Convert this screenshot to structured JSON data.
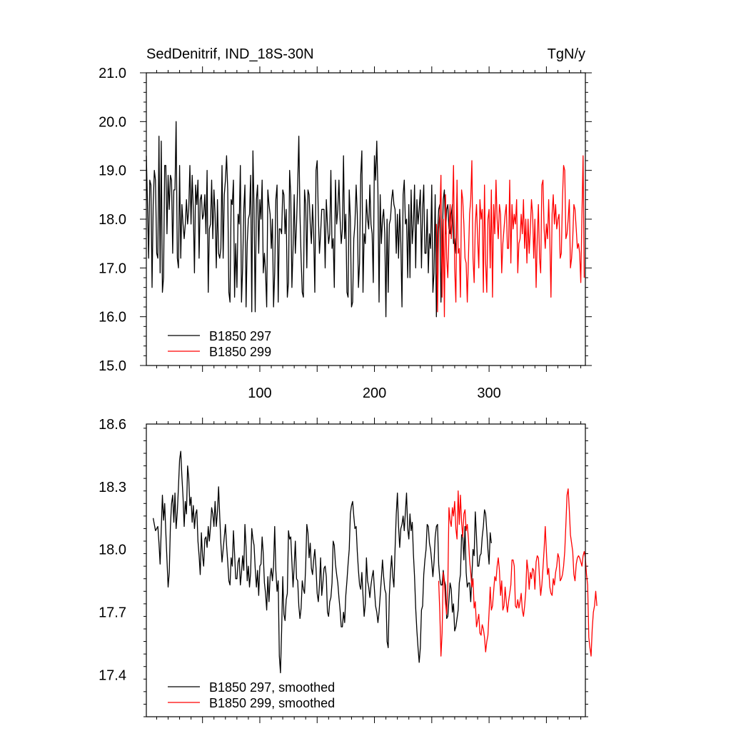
{
  "chart_data": [
    {
      "type": "line",
      "title_left": "SedDenitrif, IND_18S-30N",
      "title_right": "TgN/y",
      "xlim": [
        1,
        384
      ],
      "ylim": [
        15.0,
        21.0
      ],
      "x_ticks": [
        100,
        200,
        300
      ],
      "x_tick_labels": [
        "100",
        "200",
        "300"
      ],
      "y_ticks": [
        15.0,
        16.0,
        17.0,
        18.0,
        19.0,
        20.0,
        21.0
      ],
      "y_tick_labels": [
        "15.0",
        "16.0",
        "17.0",
        "18.0",
        "19.0",
        "20.0",
        "21.0"
      ],
      "grid": false,
      "legend_position": "bottom-left",
      "series": [
        {
          "name": "B1850 297",
          "color": "#000000",
          "x_start": 1,
          "values": [
            19.3,
            18.3,
            17.2,
            18.8,
            18.7,
            16.6,
            18.3,
            19.0,
            18.8,
            17.3,
            17.2,
            19.7,
            16.9,
            19.6,
            16.5,
            16.8,
            19.1,
            19.1,
            17.7,
            18.9,
            18.2,
            18.9,
            18.8,
            17.3,
            18.6,
            18.6,
            20.0,
            17.2,
            17.0,
            19.1,
            17.2,
            18.3,
            17.9,
            17.6,
            17.9,
            18.4,
            17.9,
            18.2,
            19.1,
            17.9,
            18.9,
            18.2,
            16.9,
            18.7,
            18.3,
            18.8,
            17.2,
            18.4,
            18.5,
            18.0,
            18.1,
            18.5,
            17.7,
            19.0,
            16.5,
            17.8,
            17.9,
            18.8,
            17.6,
            18.6,
            18.1,
            17.0,
            18.4,
            17.3,
            17.2,
            17.4,
            19.1,
            17.2,
            18.5,
            18.8,
            19.3,
            18.6,
            16.5,
            16.3,
            18.4,
            18.3,
            18.8,
            16.4,
            17.5,
            16.6,
            18.1,
            17.9,
            19.1,
            16.3,
            17.0,
            18.2,
            18.7,
            16.2,
            17.5,
            18.0,
            18.1,
            18.9,
            16.1,
            19.4,
            18.2,
            16.1,
            18.4,
            18.7,
            17.3,
            18.4,
            18.0,
            18.8,
            16.9,
            17.3,
            16.9,
            16.2,
            18.6,
            18.3,
            18.1,
            17.4,
            18.0,
            16.2,
            16.9,
            18.4,
            18.7,
            16.3,
            17.8,
            17.8,
            17.7,
            18.6,
            18.5,
            17.7,
            18.2,
            16.4,
            16.7,
            19.0,
            18.5,
            16.6,
            17.4,
            18.5,
            17.3,
            17.9,
            18.7,
            19.7,
            18.1,
            17.2,
            16.5,
            16.4,
            18.6,
            18.3,
            17.0,
            18.6,
            18.5,
            17.9,
            17.5,
            18.3,
            17.7,
            16.5,
            19.0,
            19.2,
            18.1,
            17.3,
            17.7,
            18.2,
            18.2,
            18.2,
            17.0,
            18.4,
            17.9,
            17.5,
            17.7,
            19.0,
            17.4,
            17.6,
            16.6,
            18.8,
            17.9,
            18.2,
            18.8,
            18.0,
            17.5,
            17.8,
            19.3,
            17.6,
            18.1,
            16.5,
            16.4,
            18.6,
            18.0,
            16.2,
            16.3,
            17.6,
            17.9,
            18.7,
            18.1,
            16.6,
            17.1,
            18.9,
            19.4,
            16.5,
            17.7,
            17.5,
            18.4,
            18.0,
            17.8,
            18.7,
            17.9,
            17.7,
            16.7,
            19.3,
            18.8,
            19.6,
            18.6,
            16.3,
            18.5,
            17.5,
            18.0,
            18.2,
            17.7,
            16.0,
            18.0,
            16.5,
            17.9,
            18.0,
            18.4,
            18.6,
            18.3,
            18.2,
            17.3,
            18.1,
            17.2,
            18.2,
            17.5,
            16.2,
            18.5,
            18.8,
            17.9,
            18.0,
            16.8,
            18.3,
            16.8,
            18.6,
            17.5,
            17.9,
            18.7,
            17.0,
            18.4,
            17.9,
            18.2,
            18.6,
            17.0,
            18.2,
            18.7,
            17.3,
            17.3,
            18.2,
            16.9,
            17.7,
            17.4,
            18.7,
            16.5,
            16.9,
            18.5,
            16.0,
            17.7,
            18.2,
            18.3,
            16.3,
            17.4,
            18.4,
            18.6,
            17.7,
            18.2,
            18.3,
            17.8,
            17.7,
            18.1,
            18.3,
            17.5,
            17.6,
            17.3,
            18.6
          ]
        },
        {
          "name": "B1850 299",
          "color": "#ff0000",
          "x_start": 254,
          "values": [
            17.9,
            16.1,
            17.8,
            18.1,
            18.9,
            16.4,
            18.0,
            16.0,
            18.5,
            17.2,
            16.8,
            17.7,
            18.3,
            17.6,
            18.1,
            19.1,
            17.0,
            16.3,
            18.8,
            17.3,
            17.4,
            16.4,
            18.6,
            18.4,
            17.9,
            17.2,
            17.1,
            16.3,
            17.2,
            18.1,
            18.4,
            19.2,
            17.2,
            16.7,
            17.9,
            18.3,
            17.6,
            17.0,
            18.4,
            18.0,
            18.2,
            16.5,
            18.7,
            17.1,
            16.5,
            18.0,
            18.2,
            17.0,
            18.6,
            16.4,
            18.3,
            17.7,
            18.8,
            18.0,
            17.6,
            18.3,
            18.1,
            16.9,
            17.5,
            17.8,
            18.1,
            18.3,
            17.4,
            17.4,
            18.8,
            17.1,
            18.3,
            17.8,
            18.1,
            17.9,
            18.4,
            16.9,
            17.5,
            17.6,
            18.1,
            17.7,
            18.4,
            17.4,
            18.0,
            17.1,
            18.0,
            17.3,
            17.8,
            18.4,
            18.1,
            17.2,
            18.0,
            16.6,
            17.6,
            18.3,
            17.2,
            16.9,
            18.7,
            18.8,
            17.8,
            17.4,
            17.9,
            17.6,
            18.4,
            17.6,
            16.4,
            18.1,
            18.5,
            17.9,
            18.3,
            17.8,
            18.0,
            18.1,
            17.2,
            17.3,
            18.4,
            19.1,
            19.0,
            17.6,
            17.7,
            18.0,
            18.4,
            17.0,
            17.2,
            17.6,
            18.3,
            18.2,
            17.8,
            17.4,
            17.5,
            17.3,
            16.7,
            18.1,
            19.3,
            16.8
          ]
        }
      ]
    },
    {
      "type": "line",
      "xlim": [
        1,
        384
      ],
      "ylim": [
        17.2,
        18.6
      ],
      "y_ticks": [
        17.4,
        17.7,
        18.0,
        18.3,
        18.6
      ],
      "y_tick_labels": [
        "17.4",
        "17.7",
        "18.0",
        "18.3",
        "18.6"
      ],
      "grid": false,
      "legend_position": "bottom-left",
      "series": [
        {
          "name": "B1850 297, smoothed",
          "color": "#000000",
          "x_start": 7,
          "values": [
            18.15,
            18.12,
            18.09,
            18.1,
            18.11,
            18.03,
            17.93,
            18.1,
            18.26,
            18.14,
            18.22,
            18.08,
            17.95,
            17.82,
            17.89,
            18.11,
            18.22,
            18.26,
            18.13,
            18.27,
            18.1,
            18.18,
            18.3,
            18.43,
            18.47,
            18.35,
            18.25,
            18.11,
            18.23,
            18.17,
            18.4,
            18.34,
            18.21,
            18.25,
            18.13,
            18.21,
            18.1,
            18.17,
            18.19,
            18.04,
            17.97,
            17.88,
            18.08,
            17.97,
            17.92,
            18.05,
            18.06,
            18.01,
            18.11,
            18.04,
            18.11,
            18.2,
            18.17,
            18.11,
            18.23,
            18.11,
            18.18,
            18.3,
            18.16,
            18.03,
            17.94,
            18.0,
            18.06,
            18.12,
            18.02,
            17.94,
            17.85,
            17.83,
            17.96,
            17.92,
            18.09,
            17.98,
            17.86,
            17.86,
            17.94,
            17.96,
            17.83,
            17.89,
            17.97,
            17.9,
            18.12,
            18.01,
            17.85,
            17.92,
            17.82,
            17.89,
            18.1,
            18.05,
            18.02,
            17.91,
            17.82,
            17.9,
            17.78,
            17.92,
            17.93,
            18.06,
            17.98,
            17.84,
            17.79,
            17.71,
            17.87,
            17.75,
            17.87,
            17.91,
            17.85,
            17.92,
            18.11,
            17.9,
            17.8,
            17.85,
            17.49,
            17.41,
            17.61,
            17.87,
            17.69,
            17.66,
            17.76,
            17.79,
            18.09,
            18.05,
            18.06,
            17.94,
            17.82,
            17.92,
            18.04,
            17.86,
            17.85,
            17.73,
            17.67,
            17.72,
            17.85,
            17.81,
            17.79,
            17.92,
            18.12,
            18.08,
            17.96,
            18.03,
            17.91,
            17.88,
            17.95,
            18.0,
            17.91,
            17.79,
            17.75,
            17.83,
            17.96,
            17.78,
            17.84,
            17.91,
            17.92,
            17.87,
            17.7,
            17.68,
            17.75,
            17.77,
            17.84,
            18.04,
            18.02,
            17.93,
            17.88,
            17.84,
            17.77,
            17.71,
            17.63,
            17.63,
            17.7,
            17.65,
            17.78,
            17.85,
            17.93,
            18.0,
            18.17,
            18.21,
            18.23,
            18.16,
            18.1,
            18.11,
            17.99,
            17.9,
            17.83,
            17.81,
            17.89,
            17.78,
            17.68,
            17.74,
            17.96,
            17.85,
            17.82,
            17.77,
            17.83,
            17.87,
            17.9,
            17.81,
            17.73,
            17.7,
            17.65,
            17.7,
            17.78,
            17.86,
            17.95,
            17.87,
            17.81,
            17.79,
            17.56,
            17.53,
            17.78,
            17.89,
            17.97,
            17.87,
            17.82,
            18.0,
            18.17,
            18.27,
            18.11,
            18.01,
            18.1,
            18.12,
            18.16,
            18.09,
            18.18,
            18.27,
            18.1,
            18.05,
            18.17,
            18.09,
            18.13,
            17.98,
            17.87,
            17.72,
            17.61,
            17.53,
            17.46,
            17.53,
            17.71,
            17.73,
            17.88,
            17.95,
            18.0,
            18.12,
            18.11,
            18.03,
            18.0,
            17.94,
            17.87,
            17.94,
            18.06,
            18.11,
            18.12,
            17.93,
            17.86,
            17.83,
            17.83,
            17.9,
            17.85,
            17.83,
            17.67,
            17.68,
            17.76,
            17.84,
            17.81,
            17.7,
            17.74,
            17.61,
            17.63,
            17.67,
            17.71,
            17.84,
            17.88,
            18.07,
            18.07,
            17.95,
            18.11,
            17.89,
            17.82,
            17.84,
            17.84,
            17.75,
            17.87,
            18.0,
            17.97,
            18.18,
            18.06,
            17.92,
            17.92,
            17.97,
            17.98,
            18.06,
            18.11,
            18.19,
            18.17,
            18.09,
            18.0,
            17.93,
            18.08,
            18.03
          ]
        },
        {
          "name": "B1850 299, smoothed",
          "color": "#ff0000",
          "x_start": 256,
          "values": [
            17.85,
            17.7,
            17.49,
            17.6,
            17.89,
            17.84,
            17.74,
            17.69,
            17.82,
            18.2,
            18.14,
            18.11,
            18.2,
            18.16,
            18.23,
            18.1,
            18.05,
            18.28,
            18.12,
            18.26,
            18.13,
            18.06,
            18.17,
            18.19,
            18.09,
            18.12,
            18.05,
            17.95,
            17.89,
            17.82,
            17.86,
            17.72,
            17.75,
            17.63,
            17.66,
            17.69,
            17.6,
            17.59,
            17.64,
            17.62,
            17.58,
            17.51,
            17.56,
            17.59,
            17.7,
            17.82,
            17.71,
            17.73,
            17.8,
            17.87,
            17.85,
            17.92,
            17.96,
            17.9,
            17.78,
            17.85,
            17.71,
            17.73,
            17.82,
            17.75,
            17.7,
            17.75,
            17.79,
            17.83,
            17.95,
            17.95,
            17.92,
            17.73,
            17.72,
            17.76,
            17.72,
            17.75,
            17.79,
            17.71,
            17.68,
            17.73,
            17.8,
            17.95,
            17.9,
            17.81,
            17.89,
            17.86,
            17.91,
            17.9,
            17.81,
            17.94,
            17.97,
            17.96,
            17.86,
            17.78,
            17.83,
            17.91,
            18.0,
            18.11,
            17.99,
            17.88,
            17.91,
            17.82,
            17.79,
            17.78,
            17.86,
            17.83,
            17.89,
            17.92,
            17.98,
            17.96,
            17.85,
            17.86,
            17.88,
            17.92,
            17.99,
            18.12,
            18.26,
            18.29,
            18.19,
            18.07,
            18.03,
            17.99,
            17.88,
            17.85,
            17.93,
            17.96,
            17.97,
            17.96,
            17.94,
            17.92,
            17.97,
            17.99,
            17.96,
            17.88,
            17.83,
            17.58,
            17.53,
            17.49,
            17.62,
            17.7,
            17.73,
            17.8,
            17.73
          ]
        }
      ]
    }
  ]
}
